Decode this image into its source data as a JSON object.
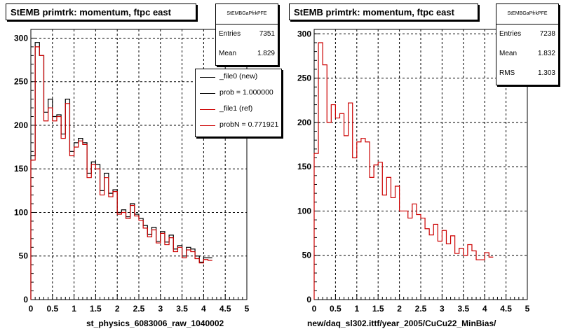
{
  "colors": {
    "new": "#000000",
    "ref": "#cc0000",
    "grid": "#000000"
  },
  "left": {
    "title": "StEMB primtrk: momentum, ftpc east",
    "stats": {
      "name": "StEMBGaPfrkPFE",
      "entries_label": "Entries",
      "entries": "7351",
      "mean_label": "Mean",
      "mean": "1.829"
    },
    "legend": [
      {
        "label": "_file0 (new)",
        "color": "#000000"
      },
      {
        "label": "prob = 1.000000",
        "color": "#000000"
      },
      {
        "label": "_file1 (ref)",
        "color": "#cc0000"
      },
      {
        "label": "probN = 0.771921",
        "color": "#cc0000"
      }
    ],
    "xlabel": "st_physics_6083006_raw_1040002"
  },
  "right": {
    "title": "StEMB primtrk: momentum, ftpc east",
    "stats": {
      "name": "StEMBGaPfrkPFE",
      "entries_label": "Entries",
      "entries": "7238",
      "mean_label": "Mean",
      "mean": "1.832",
      "rms_label": "RMS",
      "rms": "1.303"
    },
    "xlabel": "new/daq_sl302.ittf/year_2005/CuCu22_MinBias/"
  },
  "chart_data": [
    {
      "type": "histogram",
      "title": "StEMB primtrk: momentum, ftpc east",
      "xlabel": "st_physics_6083006_raw_1040002",
      "xlim": [
        0,
        5
      ],
      "ylim": [
        0,
        310
      ],
      "xticks": [
        "0",
        "0.5",
        "1",
        "1.5",
        "2",
        "2.5",
        "3",
        "3.5",
        "4",
        "4.5",
        "5"
      ],
      "yticks": [
        "0",
        "50",
        "100",
        "150",
        "200",
        "250",
        "300"
      ],
      "grid": true,
      "bin_width": 0.1,
      "series": [
        {
          "name": "_file0 (new)",
          "color": "#000000",
          "values": [
            165,
            295,
            280,
            215,
            230,
            210,
            212,
            190,
            230,
            170,
            180,
            185,
            180,
            145,
            158,
            155,
            125,
            145,
            122,
            126,
            100,
            103,
            95,
            110,
            98,
            93,
            85,
            75,
            83,
            67,
            78,
            66,
            74,
            58,
            62,
            50,
            60,
            58,
            50,
            43,
            48,
            48
          ]
        },
        {
          "name": "_file1 (ref)",
          "color": "#cc0000",
          "values": [
            160,
            290,
            280,
            205,
            220,
            205,
            210,
            185,
            225,
            165,
            175,
            182,
            178,
            140,
            155,
            150,
            120,
            140,
            118,
            124,
            98,
            100,
            93,
            108,
            96,
            91,
            82,
            72,
            80,
            65,
            76,
            63,
            71,
            55,
            60,
            48,
            57,
            55,
            47,
            42,
            46,
            45
          ]
        }
      ]
    },
    {
      "type": "histogram",
      "title": "StEMB primtrk: momentum, ftpc east",
      "xlabel": "new/daq_sl302.ittf/year_2005/CuCu22_MinBias/",
      "xlim": [
        0,
        5
      ],
      "ylim": [
        0,
        305
      ],
      "xticks": [
        "0",
        "0.5",
        "1",
        "1.5",
        "2",
        "2.5",
        "3",
        "3.5",
        "4",
        "4.5",
        "5"
      ],
      "yticks": [
        "0",
        "50",
        "100",
        "150",
        "200",
        "250",
        "300"
      ],
      "grid": true,
      "bin_width": 0.1,
      "series": [
        {
          "color": "#cc0000",
          "values": [
            165,
            290,
            265,
            200,
            220,
            205,
            210,
            185,
            222,
            160,
            178,
            182,
            178,
            138,
            152,
            155,
            118,
            138,
            115,
            128,
            100,
            100,
            92,
            108,
            96,
            92,
            80,
            73,
            85,
            66,
            78,
            63,
            72,
            52,
            58,
            50,
            62,
            55,
            45,
            45,
            53,
            48
          ]
        }
      ]
    }
  ]
}
